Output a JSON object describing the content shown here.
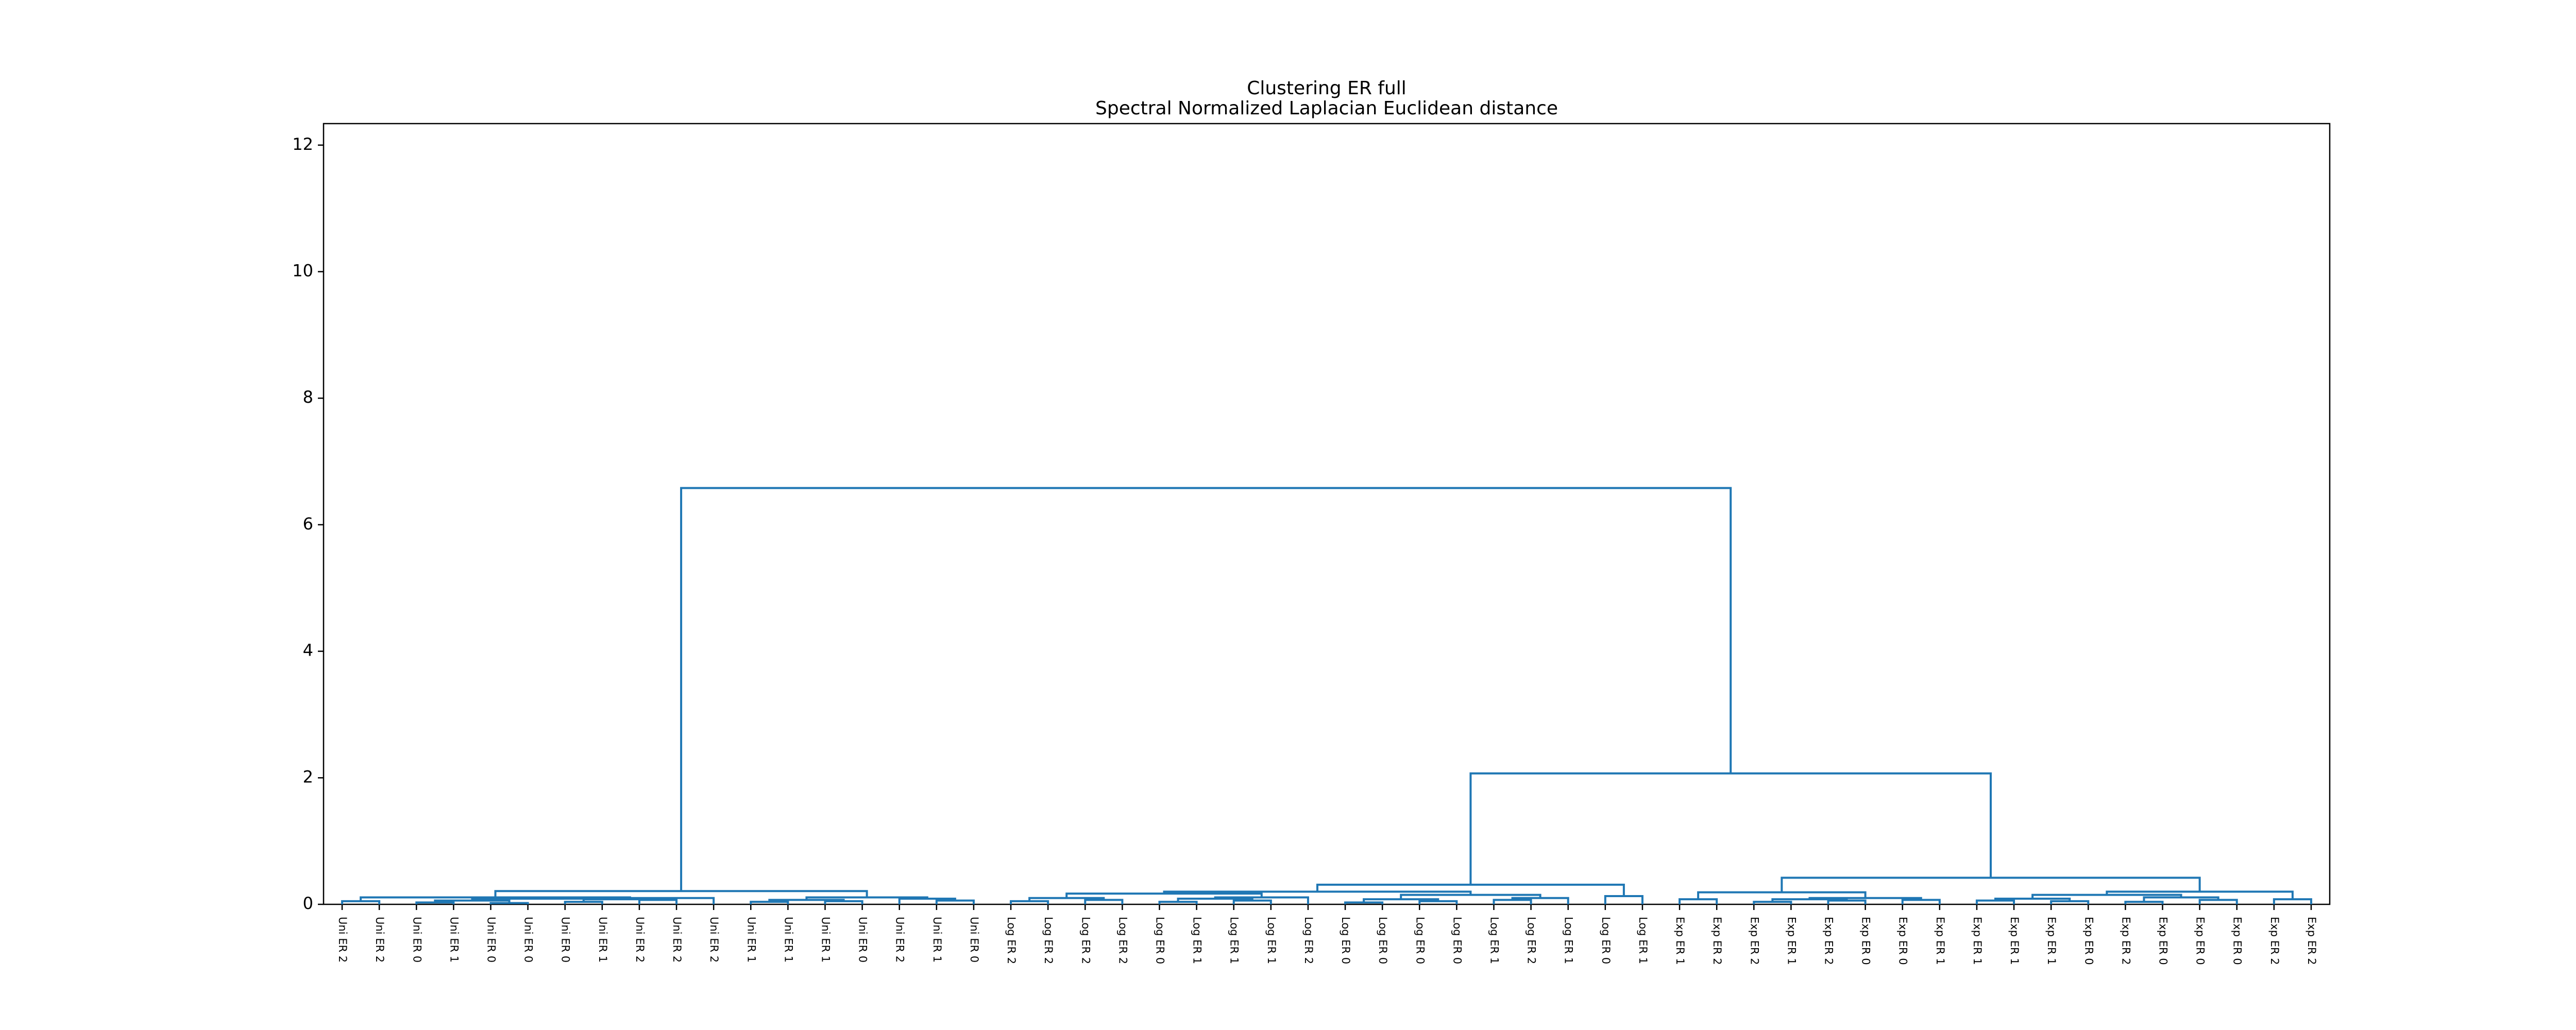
{
  "chart_data": {
    "type": "dendrogram",
    "title": "Clustering ER full",
    "subtitle": "Spectral Normalized Laplacian Euclidean distance",
    "link_color": "#1f77b4",
    "leaves": [
      "Uni ER 2",
      "Uni ER 2",
      "Uni ER 0",
      "Uni ER 1",
      "Uni ER 0",
      "Uni ER 0",
      "Uni ER 0",
      "Uni ER 1",
      "Uni ER 2",
      "Uni ER 2",
      "Uni ER 2",
      "Uni ER 1",
      "Uni ER 1",
      "Uni ER 1",
      "Uni ER 0",
      "Uni ER 2",
      "Uni ER 1",
      "Uni ER 0",
      "Log ER 2",
      "Log ER 2",
      "Log ER 2",
      "Log ER 2",
      "Log ER 0",
      "Log ER 1",
      "Log ER 1",
      "Log ER 1",
      "Log ER 2",
      "Log ER 0",
      "Log ER 0",
      "Log ER 0",
      "Log ER 0",
      "Log ER 1",
      "Log ER 2",
      "Log ER 1",
      "Log ER 0",
      "Log ER 1",
      "Exp ER 1",
      "Exp ER 2",
      "Exp ER 2",
      "Exp ER 1",
      "Exp ER 2",
      "Exp ER 0",
      "Exp ER 0",
      "Exp ER 1",
      "Exp ER 1",
      "Exp ER 1",
      "Exp ER 1",
      "Exp ER 0",
      "Exp ER 2",
      "Exp ER 0",
      "Exp ER 0",
      "Exp ER 0",
      "Exp ER 2",
      "Exp ER 2"
    ],
    "leaf_colors": [
      "#006400",
      "#006400",
      "#90ee90",
      "#228b22",
      "#90ee90",
      "#90ee90",
      "#90ee90",
      "#228b22",
      "#006400",
      "#006400",
      "#006400",
      "#228b22",
      "#228b22",
      "#228b22",
      "#90ee90",
      "#006400",
      "#228b22",
      "#90ee90",
      "#00008b",
      "#00008b",
      "#00008b",
      "#00008b",
      "#add8e6",
      "#0000ff",
      "#0000ff",
      "#0000ff",
      "#00008b",
      "#add8e6",
      "#add8e6",
      "#add8e6",
      "#add8e6",
      "#0000ff",
      "#00008b",
      "#0000ff",
      "#add8e6",
      "#0000ff",
      "#ff0000",
      "#8b0000",
      "#8b0000",
      "#ff0000",
      "#8b0000",
      "#ffaaaa",
      "#ffaaaa",
      "#ff0000",
      "#ff0000",
      "#ff0000",
      "#ff0000",
      "#ffaaaa",
      "#8b0000",
      "#ffaaaa",
      "#ffaaaa",
      "#ffaaaa",
      "#8b0000",
      "#8b0000"
    ],
    "linkage": [
      [
        0,
        1,
        0.05
      ],
      [
        2,
        3,
        0.03
      ],
      [
        4,
        5,
        0.02
      ],
      [
        55,
        56,
        0.06
      ],
      [
        6,
        7,
        0.04
      ],
      [
        8,
        9,
        0.07
      ],
      [
        58,
        59,
        0.08
      ],
      [
        57,
        60,
        0.09
      ],
      [
        61,
        10,
        0.1
      ],
      [
        54,
        62,
        0.11
      ],
      [
        11,
        12,
        0.04
      ],
      [
        13,
        14,
        0.05
      ],
      [
        64,
        65,
        0.07
      ],
      [
        16,
        17,
        0.06
      ],
      [
        15,
        67,
        0.09
      ],
      [
        66,
        68,
        0.11
      ],
      [
        63,
        69,
        0.21
      ],
      [
        18,
        19,
        0.05
      ],
      [
        20,
        21,
        0.07
      ],
      [
        71,
        72,
        0.1
      ],
      [
        22,
        23,
        0.04
      ],
      [
        24,
        25,
        0.06
      ],
      [
        74,
        75,
        0.09
      ],
      [
        76,
        26,
        0.11
      ],
      [
        73,
        77,
        0.17
      ],
      [
        27,
        28,
        0.03
      ],
      [
        29,
        30,
        0.05
      ],
      [
        79,
        80,
        0.08
      ],
      [
        31,
        32,
        0.07
      ],
      [
        82,
        33,
        0.1
      ],
      [
        81,
        83,
        0.15
      ],
      [
        78,
        84,
        0.2
      ],
      [
        34,
        35,
        0.13
      ],
      [
        85,
        86,
        0.31
      ],
      [
        36,
        37,
        0.08
      ],
      [
        38,
        39,
        0.04
      ],
      [
        40,
        41,
        0.06
      ],
      [
        89,
        90,
        0.08
      ],
      [
        42,
        43,
        0.07
      ],
      [
        91,
        92,
        0.1
      ],
      [
        88,
        93,
        0.19
      ],
      [
        44,
        45,
        0.06
      ],
      [
        46,
        47,
        0.05
      ],
      [
        95,
        96,
        0.09
      ],
      [
        48,
        49,
        0.04
      ],
      [
        50,
        51,
        0.07
      ],
      [
        98,
        99,
        0.11
      ],
      [
        97,
        100,
        0.15
      ],
      [
        52,
        53,
        0.08
      ],
      [
        101,
        102,
        0.2
      ],
      [
        94,
        103,
        0.42
      ],
      [
        87,
        104,
        2.07
      ],
      [
        70,
        105,
        6.58
      ]
    ],
    "ylim": [
      0,
      12.34
    ],
    "yticks": [
      0,
      2,
      4,
      6,
      8,
      10,
      12
    ]
  }
}
